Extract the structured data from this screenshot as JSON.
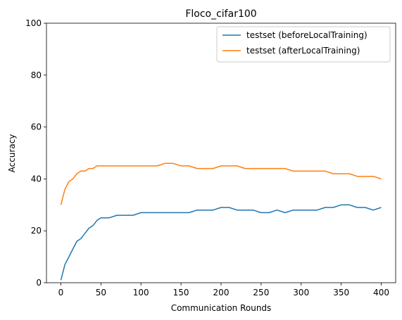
{
  "chart_data": {
    "type": "line",
    "title": "Floco_cifar100",
    "xlabel": "Communication Rounds",
    "ylabel": "Accuracy",
    "xlim": [
      -18,
      418
    ],
    "ylim": [
      0,
      100
    ],
    "xticks": [
      0,
      50,
      100,
      150,
      200,
      250,
      300,
      350,
      400
    ],
    "yticks": [
      0,
      20,
      40,
      60,
      80,
      100
    ],
    "grid": false,
    "legend": "top-right",
    "series": [
      {
        "name": "testset (beforeLocalTraining)",
        "color": "#1f77b4",
        "x": [
          0,
          5,
          10,
          15,
          20,
          25,
          30,
          35,
          40,
          45,
          50,
          60,
          70,
          80,
          90,
          100,
          110,
          120,
          130,
          140,
          150,
          160,
          170,
          180,
          190,
          200,
          210,
          220,
          230,
          240,
          250,
          260,
          270,
          280,
          290,
          300,
          310,
          320,
          330,
          340,
          350,
          360,
          370,
          380,
          390,
          400
        ],
        "y": [
          1,
          7,
          10,
          13,
          16,
          17,
          19,
          21,
          22,
          24,
          25,
          25,
          26,
          26,
          26,
          27,
          27,
          27,
          27,
          27,
          27,
          27,
          28,
          28,
          28,
          29,
          29,
          28,
          28,
          28,
          27,
          27,
          28,
          27,
          28,
          28,
          28,
          28,
          29,
          29,
          30,
          30,
          29,
          29,
          28,
          29
        ]
      },
      {
        "name": "testset (afterLocalTraining)",
        "color": "#ff7f0e",
        "x": [
          0,
          5,
          10,
          15,
          20,
          25,
          30,
          35,
          40,
          45,
          50,
          60,
          70,
          80,
          90,
          100,
          110,
          120,
          130,
          140,
          150,
          160,
          170,
          180,
          190,
          200,
          210,
          220,
          230,
          240,
          250,
          260,
          270,
          280,
          290,
          300,
          310,
          320,
          330,
          340,
          350,
          360,
          370,
          380,
          390,
          400
        ],
        "y": [
          30,
          36,
          39,
          40,
          42,
          43,
          43,
          44,
          44,
          45,
          45,
          45,
          45,
          45,
          45,
          45,
          45,
          45,
          46,
          46,
          45,
          45,
          44,
          44,
          44,
          45,
          45,
          45,
          44,
          44,
          44,
          44,
          44,
          44,
          43,
          43,
          43,
          43,
          43,
          42,
          42,
          42,
          41,
          41,
          41,
          40
        ]
      }
    ]
  }
}
